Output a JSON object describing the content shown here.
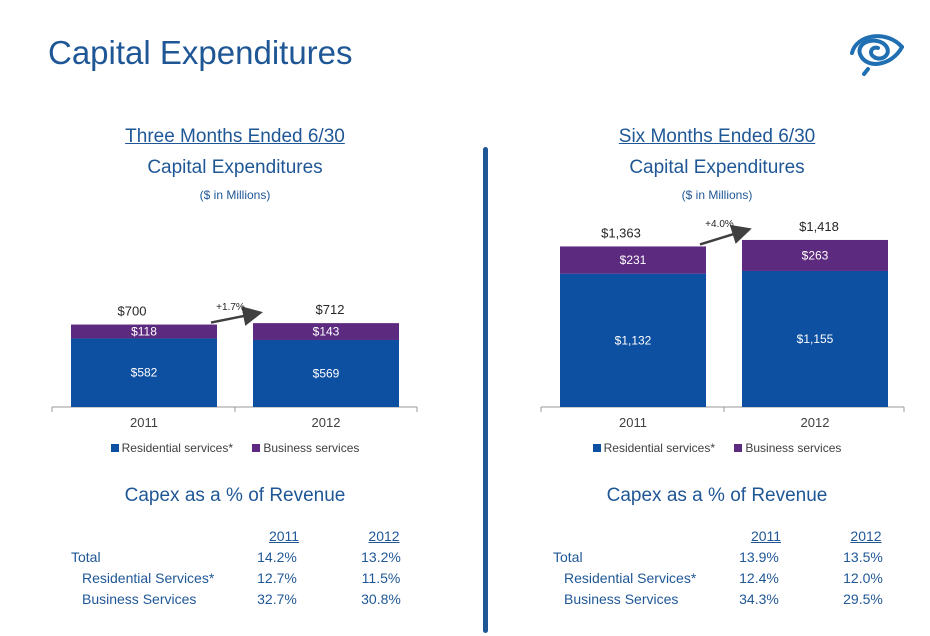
{
  "title": "Capital Expenditures",
  "logo_name": "spiral-eye-logo",
  "colors": {
    "brand_blue": "#1f5796",
    "residential": "#0d4fa0",
    "business": "#5c2a7e",
    "arrow": "#404040"
  },
  "panels": [
    {
      "period": "Three Months Ended 6/30",
      "subtitle": "Capital Expenditures",
      "units": "($ in Millions)",
      "legend": [
        "Residential services*",
        "Business services"
      ],
      "revenue_title": "Capex as a % of Revenue",
      "years": [
        "2011",
        "2012"
      ],
      "rows": [
        {
          "label": "Total",
          "values": [
            "14.2%",
            "13.2%"
          ]
        },
        {
          "label": "Residential Services*",
          "values": [
            "12.7%",
            "11.5%"
          ]
        },
        {
          "label": "Business Services",
          "values": [
            "32.7%",
            "30.8%"
          ]
        }
      ]
    },
    {
      "period": "Six Months Ended 6/30",
      "subtitle": "Capital Expenditures",
      "units": "($ in Millions)",
      "legend": [
        "Residential services*",
        "Business services"
      ],
      "revenue_title": "Capex as a % of Revenue",
      "years": [
        "2011",
        "2012"
      ],
      "rows": [
        {
          "label": "Total",
          "values": [
            "13.9%",
            "13.5%"
          ]
        },
        {
          "label": "Residential Services*",
          "values": [
            "12.4%",
            "12.0%"
          ]
        },
        {
          "label": "Business Services",
          "values": [
            "34.3%",
            "29.5%"
          ]
        }
      ]
    }
  ],
  "chart_data": [
    {
      "type": "bar",
      "stacked": true,
      "categories": [
        "2011",
        "2012"
      ],
      "series": [
        {
          "name": "Residential services*",
          "values": [
            582,
            569
          ],
          "labels": [
            "$582",
            "$569"
          ]
        },
        {
          "name": "Business services",
          "values": [
            118,
            143
          ],
          "labels": [
            "$118",
            "$143"
          ]
        }
      ],
      "totals": [
        700,
        712
      ],
      "total_labels": [
        "$700",
        "$712"
      ],
      "change_label": "+1.7%",
      "ylim": [
        0,
        1418
      ],
      "legend": "bottom"
    },
    {
      "type": "bar",
      "stacked": true,
      "categories": [
        "2011",
        "2012"
      ],
      "series": [
        {
          "name": "Residential services*",
          "values": [
            1132,
            1155
          ],
          "labels": [
            "$1,132",
            "$1,155"
          ]
        },
        {
          "name": "Business services",
          "values": [
            231,
            263
          ],
          "labels": [
            "$231",
            "$263"
          ]
        }
      ],
      "totals": [
        1363,
        1418
      ],
      "total_labels": [
        "$1,363",
        "$1,418"
      ],
      "change_label": "+4.0%",
      "ylim": [
        0,
        1418
      ],
      "legend": "bottom"
    }
  ]
}
